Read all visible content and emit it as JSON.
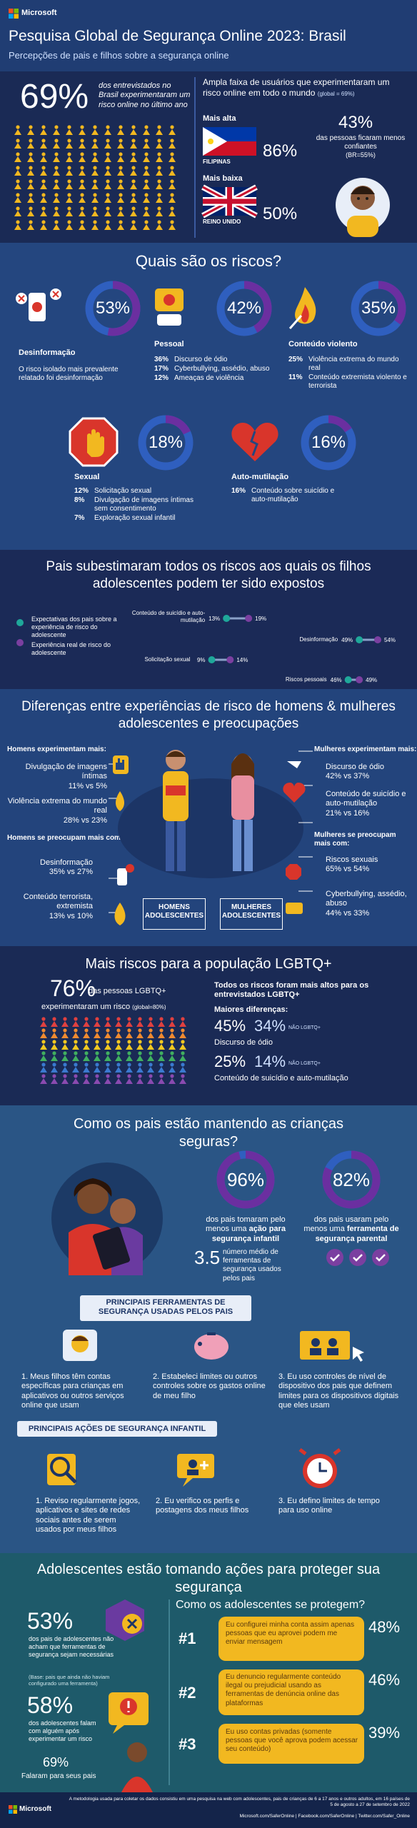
{
  "header": {
    "brand": "Microsoft",
    "title": "Pesquisa Global de Segurança Online 2023: Brasil",
    "subtitle": "Percepções de pais e filhos sobre a segurança online"
  },
  "overview": {
    "stat": "69%",
    "stat_text": "dos entrevistados no Brasil experimentaram um risco online no último ano",
    "global_heading": "Ampla faixa de usuários que experimentaram um risco online em todo o mundo",
    "global_note": "(global = 69%)",
    "highest_label": "Mais alta",
    "highest_value": "86%",
    "highest_country": "FILIPINAS",
    "lowest_label": "Mais baixa",
    "lowest_value": "50%",
    "lowest_country": "REINO UNIDO",
    "confidence_value": "43%",
    "confidence_text": "das pessoas ficaram menos confiantes",
    "confidence_note": "(BR=55%)"
  },
  "risks": {
    "title": "Quais são os riscos?",
    "items": [
      {
        "name": "Desinformação",
        "pct": {
          "value": 53,
          "label": "53%"
        },
        "description": "O risco isolado mais prevalente relatado foi desinformação"
      },
      {
        "name": "Pessoal",
        "pct": {
          "value": 42,
          "label": "42%"
        },
        "details": [
          {
            "pct": "36%",
            "text": "Discurso de ódio"
          },
          {
            "pct": "17%",
            "text": "Cyberbullying, assédio, abuso"
          },
          {
            "pct": "12%",
            "text": "Ameaças de violência"
          }
        ]
      },
      {
        "name": "Conteúdo violento",
        "pct": {
          "value": 35,
          "label": "35%"
        },
        "details": [
          {
            "pct": "25%",
            "text": "Violência extrema do mundo real"
          },
          {
            "pct": "11%",
            "text": "Conteúdo extremista violento e terrorista"
          }
        ]
      },
      {
        "name": "Sexual",
        "pct": {
          "value": 18,
          "label": "18%"
        },
        "details": [
          {
            "pct": "12%",
            "text": "Solicitação sexual"
          },
          {
            "pct": "8%",
            "text": "Divulgação de imagens íntimas sem consentimento"
          },
          {
            "pct": "7%",
            "text": "Exploração sexual infantil"
          }
        ]
      },
      {
        "name": "Auto-mutilação",
        "pct": {
          "value": 16,
          "label": "16%"
        },
        "details": [
          {
            "pct": "16%",
            "text": "Conteúdo sobre suicídio e auto-mutilação"
          }
        ]
      }
    ]
  },
  "underestimate": {
    "title": "Pais subestimaram todos os riscos aos quais os filhos adolescentes podem ter sido expostos",
    "legend": [
      "Expectativas dos pais sobre a experiência de risco do adolescente",
      "Experiência real de risco do adolescente"
    ],
    "rows": [
      {
        "name": "Conteúdo de suicídio e auto-mutilação",
        "expected": {
          "value": 13,
          "label": "13%"
        },
        "actual": {
          "value": 19,
          "label": "19%"
        }
      },
      {
        "name": "Desinformação",
        "expected": {
          "value": 49,
          "label": "49%"
        },
        "actual": {
          "value": 54,
          "label": "54%"
        }
      },
      {
        "name": "Solicitação sexual",
        "expected": {
          "value": 9,
          "label": "9%"
        },
        "actual": {
          "value": 14,
          "label": "14%"
        }
      },
      {
        "name": "Riscos pessoais",
        "expected": {
          "value": 46,
          "label": "46%"
        },
        "actual": {
          "value": 49,
          "label": "49%"
        }
      }
    ]
  },
  "gender": {
    "title": "Diferenças entre experiências de risco de homens & mulheres adolescentes e preocupações",
    "male_experience_heading": "Homens experimentam mais:",
    "male_experience": [
      {
        "label": "Divulgação de imagens íntimas",
        "value": "11% vs 5%"
      },
      {
        "label": "Violência extrema do mundo real",
        "value": "28% vs 23%"
      }
    ],
    "male_concern_heading": "Homens se preocupam mais com:",
    "male_concern": [
      {
        "label": "Desinformação",
        "value": "35% vs 27%"
      },
      {
        "label": "Conteúdo terrorista, extremista",
        "value": "13% vs 10%"
      }
    ],
    "female_experience_heading": "Mulheres experimentam mais:",
    "female_experience": [
      {
        "label": "Discurso de ódio",
        "value": "42% vs 37%"
      },
      {
        "label": "Conteúdo de suicídio e auto-mutilação",
        "value": "21% vs 16%"
      }
    ],
    "female_concern_heading": "Mulheres se preocupam mais com:",
    "female_concern": [
      {
        "label": "Riscos sexuais",
        "value": "65% vs 54%"
      },
      {
        "label": "Cyberbullying, assédio, abuso",
        "value": "44% vs 33%"
      }
    ],
    "male_label": "HOMENS ADOLESCENTES",
    "female_label": "MULHERES ADOLESCENTES"
  },
  "lgbtq": {
    "title": "Mais riscos para a população LGBTQ+",
    "stat": "76%",
    "stat_text": "das pessoas LGBTQ+",
    "stat_text2": "experimentaram um risco",
    "stat_note": "(global=80%)",
    "all_higher": "Todos os riscos foram mais altos para os entrevistados LGBTQ+",
    "biggest": "Maiores diferenças:",
    "differences": [
      {
        "lgbtq": "45%",
        "non": "34%",
        "non_label": "NÃO LGBTQ+",
        "risk": "Discurso de ódio"
      },
      {
        "lgbtq": "25%",
        "non": "14%",
        "non_label": "NÃO LGBTQ+",
        "risk": "Conteúdo de suicídio e auto-mutilação"
      }
    ]
  },
  "parents": {
    "title": "Como os pais estão mantendo as crianças seguras?",
    "action": {
      "pct": {
        "value": 96,
        "label": "96%"
      },
      "text": "dos pais tomaram pelo menos uma",
      "bold": "ação para segurança infantil"
    },
    "tool": {
      "pct": {
        "value": 82,
        "label": "82%"
      },
      "text": "dos pais usaram pelo menos uma",
      "bold": "ferramenta de segurança parental"
    },
    "average": "3.5",
    "average_text": "número médio de ferramentas de segurança usados pelos pais"
  },
  "tools": {
    "title": "PRINCIPAIS FERRAMENTAS DE SEGURANÇA USADAS PELOS PAIS",
    "items": [
      "1. Meus filhos têm contas específicas para crianças em aplicativos ou outros serviços online que usam",
      "2. Estabeleci limites ou outros controles sobre os gastos online de meu filho",
      "3. Eu uso controles de nível de dispositivo dos pais que definem limites para os dispositivos digitais que eles usam"
    ]
  },
  "actions": {
    "title": "PRINCIPAIS AÇÕES DE SEGURANÇA INFANTIL",
    "items": [
      "1. Reviso regularmente jogos, aplicativos e sites de redes sociais antes de serem usados por meus filhos",
      "2. Eu verifico os perfis e postagens dos meus filhos",
      "3. Eu defino limites de tempo para uso online"
    ]
  },
  "teens": {
    "title": "Adolescentes estão tomando ações para proteger sua segurança",
    "no_tools_stat": "53%",
    "no_tools_text": "dos pais de adolescentes não acham que ferramentas de segurança sejam necessárias",
    "no_tools_note": "(Base: pais que ainda não haviam configurado uma ferramenta)",
    "talk_stat": "58%",
    "talk_text": "dos adolescentes falam com alguém após experimentar um risco",
    "parents_stat": "69%",
    "parents_text": "Falaram para seus pais",
    "protect_title": "Como os adolescentes se protegem?",
    "protect": [
      {
        "rank": "#1",
        "text": "Eu configurei minha conta assim apenas pessoas que eu aprovei podem me enviar mensagem",
        "pct": "48%"
      },
      {
        "rank": "#2",
        "text": "Eu denuncio regularmente conteúdo ilegal ou prejudicial usando as ferramentas de denúncia online das plataformas",
        "pct": "46%"
      },
      {
        "rank": "#3",
        "text": "Eu uso contas privadas (somente pessoas que você aprova podem acessar seu conteúdo)",
        "pct": "39%"
      }
    ]
  },
  "footer": {
    "brand": "Microsoft",
    "methodology": "A metodologia usada para coletar os dados consistiu em uma pesquisa na web com adolescentes, pais de crianças de 6 a 17 anos e outros adultos, em 16 países de 5 de agosto a 27 de setembro de 2022",
    "links": "Microsoft.com/SaferOnline | Facebook.com/SaferOnline | Twitter.com/Safer_Online"
  }
}
